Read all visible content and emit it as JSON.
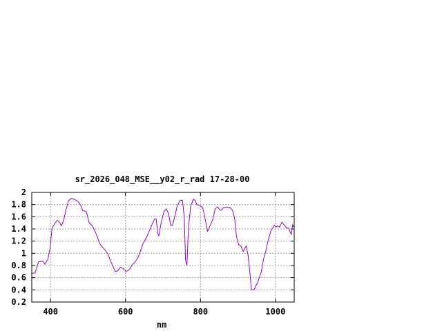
{
  "chart_data": {
    "type": "line",
    "title": "sr_2026_048_MSE__y02_r_rad 17-28-00",
    "xlabel": "nm",
    "ylabel": "",
    "xlim": [
      350,
      1050
    ],
    "ylim": [
      0.2,
      2
    ],
    "grid": true,
    "xticks": [
      400,
      600,
      800,
      1000
    ],
    "xtick_labels": [
      "400",
      "600",
      "800",
      "1000"
    ],
    "yticks": [
      0.2,
      0.4,
      0.6,
      0.8,
      1,
      1.2,
      1.4,
      1.6,
      1.8,
      2
    ],
    "ytick_labels": [
      "0.2",
      "0.4",
      "0.6",
      "0.8",
      "1",
      "1.2",
      "1.4",
      "1.6",
      "1.8",
      "2"
    ],
    "series": [
      {
        "color": "#9400d3",
        "x": [
          351,
          359,
          368,
          380,
          385,
          393,
          399,
          404,
          411,
          418,
          423,
          429,
          435,
          442,
          448,
          454,
          463,
          475,
          481,
          486,
          495,
          498,
          503,
          512,
          521,
          533,
          546,
          553,
          561,
          573,
          578,
          587,
          594,
          601,
          610,
          619,
          625,
          634,
          647,
          656,
          665,
          671,
          678,
          682,
          686,
          689,
          695,
          703,
          709,
          715,
          721,
          726,
          732,
          738,
          746,
          752,
          757,
          760,
          764,
          768,
          774,
          781,
          787,
          790,
          800,
          806,
          812,
          819,
          824,
          833,
          839,
          846,
          852,
          856,
          861,
          870,
          879,
          885,
          891,
          896,
          902,
          908,
          914,
          922,
          927,
          931,
          936,
          943,
          953,
          962,
          968,
          974,
          980,
          988,
          997,
          1001,
          1006,
          1011,
          1017,
          1023,
          1029,
          1035,
          1042,
          1046,
          1049
        ],
        "y": [
          0.67,
          0.68,
          0.86,
          0.87,
          0.82,
          0.9,
          1.09,
          1.41,
          1.49,
          1.54,
          1.52,
          1.45,
          1.54,
          1.73,
          1.86,
          1.9,
          1.89,
          1.84,
          1.78,
          1.7,
          1.69,
          1.63,
          1.5,
          1.45,
          1.33,
          1.14,
          1.05,
          0.99,
          0.86,
          0.7,
          0.71,
          0.77,
          0.75,
          0.7,
          0.73,
          0.82,
          0.85,
          0.94,
          1.16,
          1.26,
          1.39,
          1.48,
          1.57,
          1.56,
          1.33,
          1.29,
          1.5,
          1.69,
          1.73,
          1.65,
          1.45,
          1.47,
          1.62,
          1.78,
          1.87,
          1.87,
          1.58,
          0.9,
          0.8,
          1.43,
          1.78,
          1.89,
          1.86,
          1.8,
          1.78,
          1.75,
          1.58,
          1.36,
          1.43,
          1.56,
          1.73,
          1.76,
          1.71,
          1.71,
          1.75,
          1.76,
          1.75,
          1.71,
          1.58,
          1.28,
          1.14,
          1.12,
          1.03,
          1.12,
          0.97,
          0.73,
          0.4,
          0.4,
          0.53,
          0.69,
          0.9,
          1.03,
          1.2,
          1.37,
          1.46,
          1.43,
          1.45,
          1.43,
          1.51,
          1.47,
          1.42,
          1.41,
          1.31,
          1.47,
          1.43
        ]
      }
    ]
  }
}
